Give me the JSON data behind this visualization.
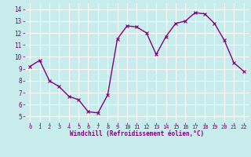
{
  "x": [
    0,
    1,
    2,
    3,
    4,
    5,
    6,
    7,
    8,
    9,
    10,
    11,
    12,
    13,
    14,
    15,
    16,
    17,
    18,
    19,
    20,
    21,
    22
  ],
  "y": [
    9.2,
    9.7,
    8.0,
    7.5,
    6.7,
    6.4,
    5.4,
    5.3,
    6.8,
    11.5,
    12.6,
    12.5,
    12.0,
    10.2,
    11.7,
    12.8,
    13.0,
    13.7,
    13.6,
    12.8,
    11.4,
    9.5,
    8.8
  ],
  "line_color": "#800080",
  "marker": "x",
  "marker_color": "#800080",
  "bg_color": "#c8ecec",
  "grid_color": "#aadddd",
  "xlabel": "Windchill (Refroidissement éolien,°C)",
  "xlabel_color": "#800080",
  "tick_color": "#800080",
  "xlim": [
    -0.5,
    22.5
  ],
  "ylim": [
    4.5,
    14.5
  ],
  "yticks": [
    5,
    6,
    7,
    8,
    9,
    10,
    11,
    12,
    13,
    14
  ],
  "xticks": [
    0,
    1,
    2,
    3,
    4,
    5,
    6,
    7,
    8,
    9,
    10,
    11,
    12,
    13,
    14,
    15,
    16,
    17,
    18,
    19,
    20,
    21,
    22
  ],
  "linewidth": 1.0,
  "markersize": 2.5,
  "xlabel_fontsize": 5.5,
  "tick_fontsize_x": 5.0,
  "tick_fontsize_y": 5.5
}
